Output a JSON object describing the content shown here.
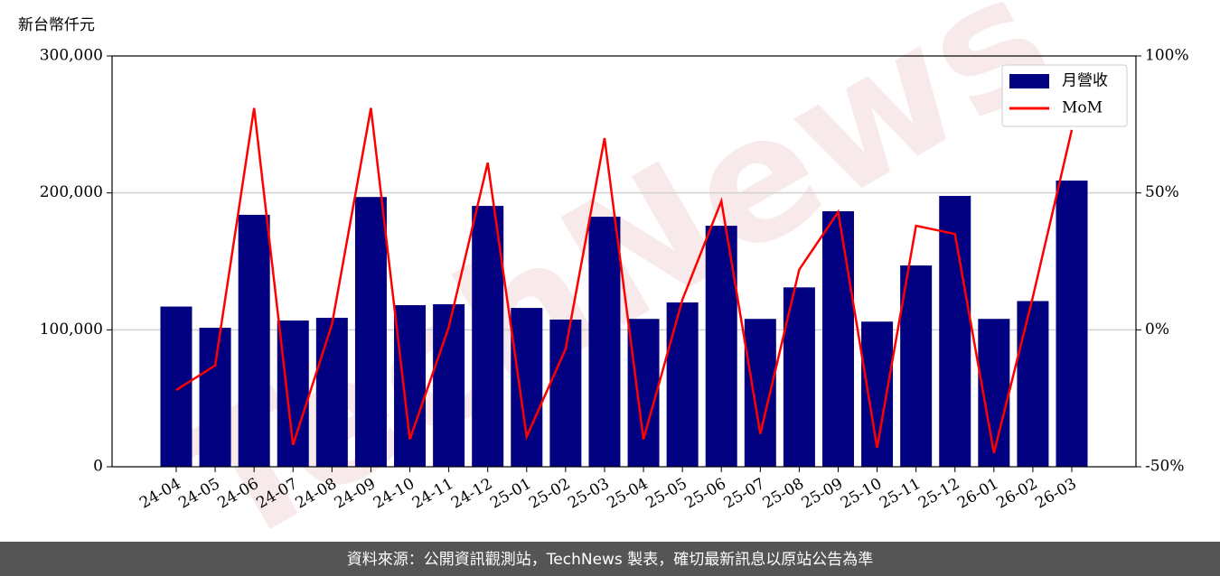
{
  "chart_data": {
    "type": "bar_line",
    "y_label": "新台幣仟元",
    "watermark": "TechNews",
    "footer": "資料來源：公開資訊觀測站，TechNews 製表，確切最新訊息以原站公告為準",
    "categories": [
      "24-04",
      "24-05",
      "24-06",
      "24-07",
      "24-08",
      "24-09",
      "24-10",
      "24-11",
      "24-12",
      "25-01",
      "25-02",
      "25-03",
      "25-04",
      "25-05",
      "25-06",
      "25-07",
      "25-08",
      "25-09",
      "25-10",
      "25-11",
      "25-12",
      "26-01",
      "26-02",
      "26-03"
    ],
    "series": [
      {
        "name": "月營收",
        "type": "bar",
        "color": "#000080",
        "values": [
          117000,
          101500,
          184000,
          106800,
          108800,
          197000,
          118000,
          118700,
          190500,
          116000,
          107500,
          182600,
          108000,
          120000,
          176000,
          108000,
          131000,
          186600,
          106000,
          147000,
          197800,
          108000,
          121000,
          209000
        ]
      },
      {
        "name": "MoM",
        "type": "line",
        "color": "#ff0000",
        "axis": "y2",
        "values": [
          -22,
          -13,
          81,
          -42,
          2,
          81,
          -40,
          1,
          61,
          -39,
          -7,
          70,
          -40,
          11,
          47,
          -38,
          22,
          43,
          -43,
          38,
          35,
          -45,
          12,
          73
        ]
      }
    ],
    "ylim": [
      0,
      300000
    ],
    "yticks": [
      0,
      {
        "value": 100000,
        "label": "100,000"
      },
      {
        "value": 200000,
        "label": "200,000"
      },
      {
        "value": 300000,
        "label": "300,000"
      }
    ],
    "y2lim": [
      -50,
      100
    ],
    "y2ticks": [
      {
        "value": -50,
        "label": "-50%"
      },
      {
        "value": 0,
        "label": "0%"
      },
      {
        "value": 50,
        "label": "50%"
      },
      {
        "value": 100,
        "label": "100%"
      }
    ],
    "grid": true,
    "legend": "upper right"
  }
}
